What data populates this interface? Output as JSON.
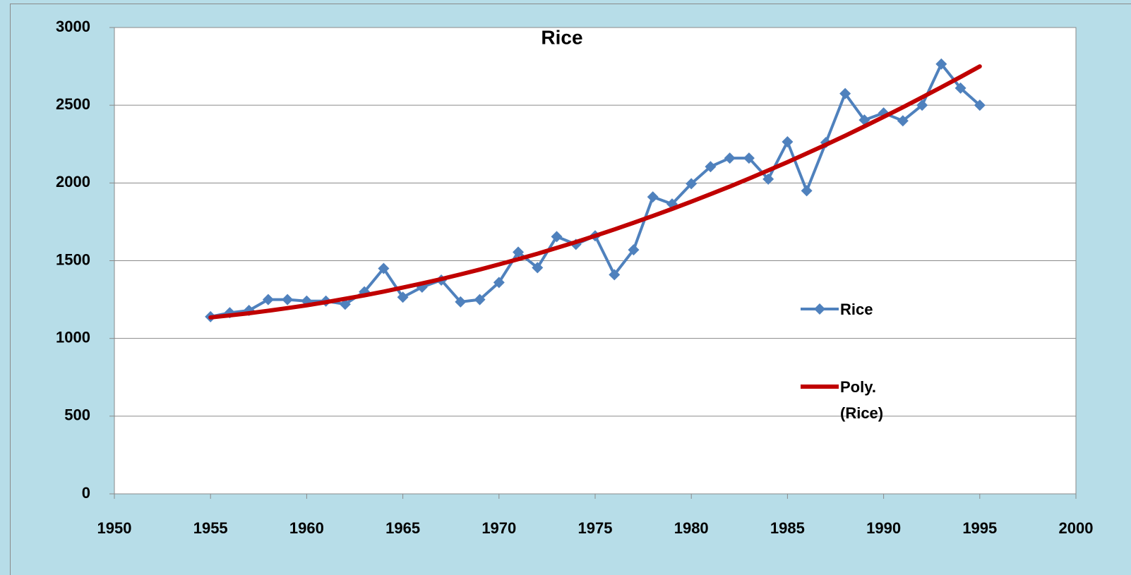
{
  "chart_data": {
    "type": "line",
    "title": "Rice",
    "x": [
      1955,
      1956,
      1957,
      1958,
      1959,
      1960,
      1961,
      1962,
      1963,
      1964,
      1965,
      1966,
      1967,
      1968,
      1969,
      1970,
      1971,
      1972,
      1973,
      1974,
      1975,
      1976,
      1977,
      1978,
      1979,
      1980,
      1981,
      1982,
      1983,
      1984,
      1985,
      1986,
      1987,
      1988,
      1989,
      1990,
      1991,
      1992,
      1993,
      1994,
      1995
    ],
    "series": [
      {
        "name": "Rice",
        "color": "#4f81bd",
        "marker": "diamond",
        "values": [
          1140,
          1165,
          1180,
          1250,
          1250,
          1240,
          1240,
          1220,
          1300,
          1450,
          1265,
          1330,
          1375,
          1235,
          1250,
          1360,
          1555,
          1455,
          1655,
          1605,
          1660,
          1410,
          1570,
          1910,
          1865,
          1995,
          2105,
          2160,
          2160,
          2025,
          2265,
          1950,
          2260,
          2575,
          2405,
          2450,
          2400,
          2500,
          2765,
          2610,
          2500
        ]
      },
      {
        "name": "Poly. (Rice)",
        "color": "#c00000",
        "marker": "none",
        "values": [
          1135,
          1148,
          1162,
          1178,
          1195,
          1213,
          1233,
          1255,
          1277,
          1301,
          1327,
          1354,
          1382,
          1412,
          1443,
          1476,
          1510,
          1545,
          1582,
          1620,
          1660,
          1701,
          1744,
          1788,
          1833,
          1880,
          1928,
          1977,
          2028,
          2081,
          2134,
          2190,
          2246,
          2304,
          2364,
          2425,
          2487,
          2551,
          2616,
          2682,
          2750
        ]
      }
    ],
    "xlim": [
      1950,
      2000
    ],
    "xticks": [
      1950,
      1955,
      1960,
      1965,
      1970,
      1975,
      1980,
      1985,
      1990,
      1995,
      2000
    ],
    "ylim": [
      0,
      3000
    ],
    "yticks": [
      0,
      500,
      1000,
      1500,
      2000,
      2500,
      3000
    ],
    "grid": true,
    "legend": "right"
  }
}
